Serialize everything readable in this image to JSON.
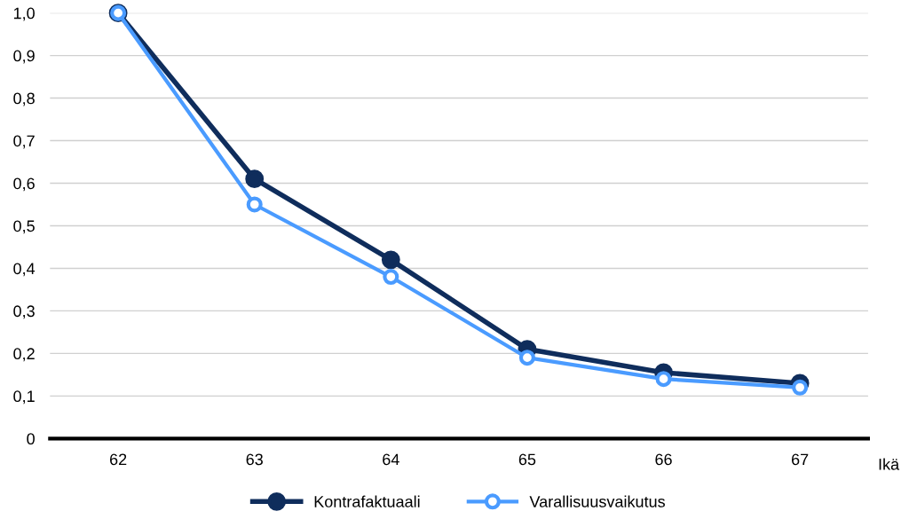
{
  "chart_data": {
    "type": "line",
    "xlabel": "Ikä",
    "categories": [
      "62",
      "63",
      "64",
      "65",
      "66",
      "67"
    ],
    "series": [
      {
        "name": "Kontrafaktuaali",
        "color": "#0f2d5c",
        "values": [
          1.0,
          0.61,
          0.42,
          0.21,
          0.155,
          0.13
        ]
      },
      {
        "name": "Varallisuusvaikutus",
        "color": "#4a9bff",
        "values": [
          1.0,
          0.55,
          0.38,
          0.19,
          0.14,
          0.12
        ]
      }
    ],
    "ylim": [
      0,
      1.0
    ],
    "yticks": [
      0,
      {
        "value": 0.1,
        "label": "0,1"
      },
      {
        "value": 0.2,
        "label": "0,2"
      },
      {
        "value": 0.3,
        "label": "0,3"
      },
      {
        "value": 0.4,
        "label": "0,4"
      },
      {
        "value": 0.5,
        "label": "0,5"
      },
      {
        "value": 0.6,
        "label": "0,6"
      },
      {
        "value": 0.7,
        "label": "0,7"
      },
      {
        "value": 0.8,
        "label": "0,8"
      },
      {
        "value": 0.9,
        "label": "0,9"
      },
      {
        "value": 1.0,
        "label": "1,0"
      }
    ],
    "grid": "y",
    "legend": "bottom",
    "marker": "circle",
    "line_style": "solid"
  }
}
